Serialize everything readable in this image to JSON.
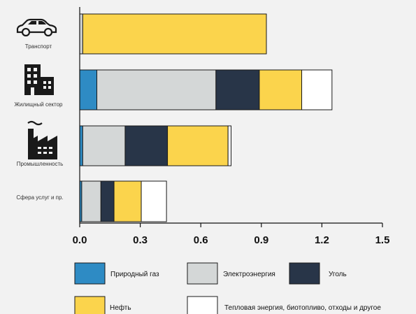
{
  "colors": {
    "gas": "#2e8bc4",
    "electricity": "#d4d7d7",
    "coal": "#283548",
    "oil": "#fbd44c",
    "other": "#ffffff",
    "stroke": "#1a1a1a"
  },
  "chart_data": {
    "type": "bar",
    "orientation": "horizontal",
    "stacked": true,
    "categories": [
      "Транспорт",
      "Жилищный сектор",
      "Промышленность",
      "Сфера услуг и пр."
    ],
    "category_icons": [
      "car-icon",
      "residential-building-icon",
      "factory-icon",
      ""
    ],
    "series": [
      {
        "name": "Природный газ",
        "color": "#2e8bc4",
        "values": [
          0.0,
          0.085,
          0.015,
          0.01
        ]
      },
      {
        "name": "Электроэнергия",
        "color": "#d4d7d7",
        "values": [
          0.015,
          0.59,
          0.21,
          0.095
        ]
      },
      {
        "name": "Уголь",
        "color": "#283548",
        "values": [
          0.0,
          0.215,
          0.21,
          0.065
        ]
      },
      {
        "name": "Нефть",
        "color": "#fbd44c",
        "values": [
          0.91,
          0.21,
          0.3,
          0.135
        ]
      },
      {
        "name": "Тепловая энергия, биотопливо, отходы и другое",
        "color": "#ffffff",
        "values": [
          0.0,
          0.15,
          0.015,
          0.125
        ]
      }
    ],
    "xticks": [
      "0.0",
      "0.3",
      "0.6",
      "0.9",
      "1.2",
      "1.5"
    ],
    "xtick_values": [
      0,
      0.3,
      0.6,
      0.9,
      1.2,
      1.5
    ],
    "xlim": [
      0,
      1.5
    ],
    "grid": false,
    "legend_position": "bottom"
  }
}
